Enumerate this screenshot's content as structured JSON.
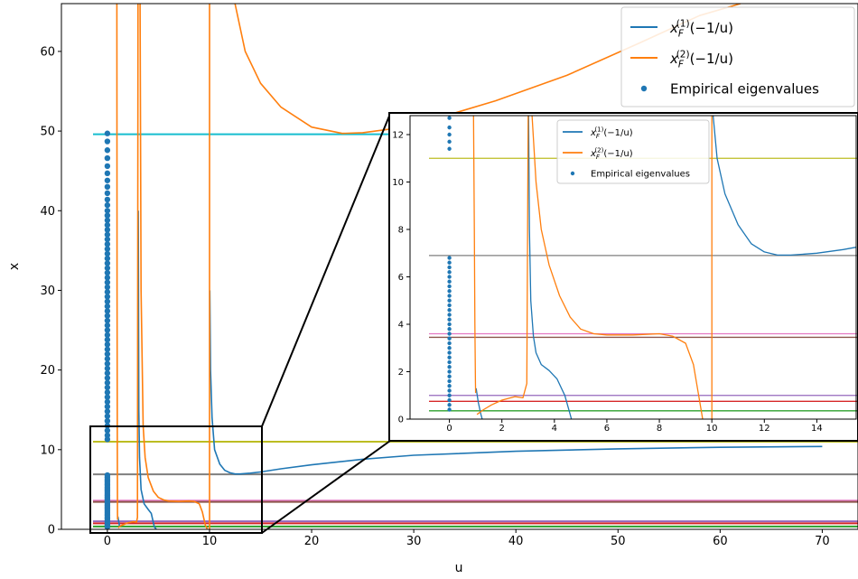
{
  "chart_data": [
    {
      "type": "line",
      "xlabel": "u",
      "ylabel": "x",
      "xlim": [
        -4.5,
        73.5
      ],
      "ylim": [
        0,
        66
      ],
      "xticks": [
        0,
        10,
        20,
        30,
        40,
        50,
        60,
        70
      ],
      "yticks": [
        0,
        10,
        20,
        30,
        40,
        50,
        60
      ],
      "legend": {
        "placement": "top-right",
        "entries": [
          {
            "label": "x",
            "sub": "F",
            "sup": "(1)",
            "arg": "(−1/u)",
            "color": "#1f77b4",
            "marker": "line"
          },
          {
            "label": "x",
            "sub": "F",
            "sup": "(2)",
            "arg": "(−1/u)",
            "color": "#ff7f0e",
            "marker": "line"
          },
          {
            "label": "Empirical eigenvalues",
            "color": "#1f77b4",
            "marker": "dot"
          }
        ]
      },
      "horizontal_lines": [
        {
          "y": 49.6,
          "color": "#17becf"
        },
        {
          "y": 11.0,
          "color": "#bcbd22"
        },
        {
          "y": 6.9,
          "color": "#7f7f7f"
        },
        {
          "y": 3.6,
          "color": "#e377c2"
        },
        {
          "y": 3.45,
          "color": "#8c564b"
        },
        {
          "y": 1.0,
          "color": "#9467bd"
        },
        {
          "y": 0.75,
          "color": "#d62728"
        },
        {
          "y": 0.35,
          "color": "#2ca02c"
        }
      ],
      "vertical_asymptotes": [
        1,
        3,
        10
      ],
      "series": [
        {
          "name": "x_F^(1)(-1/u)",
          "color": "#1f77b4",
          "segments": [
            [
              [
                1.03,
                1.6
              ],
              [
                1.2,
                0.3
              ]
            ],
            [
              [
                3.03,
                40
              ],
              [
                3.08,
                15
              ],
              [
                3.15,
                9
              ],
              [
                3.3,
                5
              ],
              [
                3.6,
                3.2
              ],
              [
                4,
                2.5
              ],
              [
                4.3,
                2.0
              ],
              [
                4.6,
                0.3
              ],
              [
                4.8,
                0
              ]
            ],
            [
              [
                10.03,
                30
              ],
              [
                10.1,
                20
              ],
              [
                10.25,
                14
              ],
              [
                10.5,
                10
              ],
              [
                11,
                8.2
              ],
              [
                11.5,
                7.4
              ],
              [
                12,
                7.1
              ],
              [
                12.5,
                6.95
              ],
              [
                13,
                6.95
              ],
              [
                14,
                7.05
              ],
              [
                15,
                7.2
              ],
              [
                17,
                7.6
              ],
              [
                20,
                8.1
              ],
              [
                25,
                8.8
              ],
              [
                30,
                9.3
              ],
              [
                40,
                9.8
              ],
              [
                50,
                10.1
              ],
              [
                60,
                10.3
              ],
              [
                70,
                10.4
              ]
            ]
          ]
        },
        {
          "name": "x_F^(2)(-1/u)",
          "color": "#ff7f0e",
          "segments": [
            [
              [
                0.93,
                66
              ],
              [
                0.95,
                30
              ],
              [
                0.97,
                10
              ],
              [
                0.99,
                2
              ],
              [
                1.0,
                1.2
              ]
            ],
            [
              [
                1.05,
                0.2
              ],
              [
                1.3,
                0.45
              ],
              [
                1.6,
                0.6
              ],
              [
                2,
                0.8
              ],
              [
                2.5,
                0.95
              ],
              [
                2.85,
                0.9
              ],
              [
                2.95,
                1.5
              ],
              [
                3.0,
                66
              ]
            ],
            [
              [
                3.2,
                66
              ],
              [
                3.3,
                30
              ],
              [
                3.5,
                13
              ],
              [
                3.7,
                9
              ],
              [
                4,
                6.5
              ],
              [
                4.5,
                4.8
              ],
              [
                5,
                4.0
              ],
              [
                5.5,
                3.7
              ],
              [
                6,
                3.55
              ],
              [
                7,
                3.5
              ],
              [
                8,
                3.55
              ],
              [
                8.5,
                3.5
              ],
              [
                9,
                3.2
              ],
              [
                9.3,
                2.2
              ],
              [
                9.6,
                0.5
              ],
              [
                9.8,
                0
              ]
            ],
            [
              [
                10,
                66
              ],
              [
                10,
                0
              ]
            ],
            [
              [
                12.5,
                66
              ],
              [
                13.5,
                60
              ],
              [
                15,
                56
              ],
              [
                17,
                53
              ],
              [
                20,
                50.5
              ],
              [
                23,
                49.7
              ],
              [
                25,
                49.8
              ],
              [
                28,
                50.3
              ],
              [
                32,
                51.5
              ],
              [
                38,
                53.8
              ],
              [
                45,
                57
              ],
              [
                52,
                61
              ],
              [
                58,
                64.5
              ],
              [
                62,
                66
              ]
            ]
          ]
        }
      ],
      "eigenvalues": {
        "u": 0,
        "y": [
          0.3,
          0.55,
          0.8,
          1.05,
          1.3,
          1.55,
          1.8,
          2.05,
          2.3,
          2.55,
          2.8,
          3.05,
          3.3,
          3.55,
          3.8,
          4.05,
          4.3,
          4.55,
          4.8,
          5.05,
          5.3,
          5.55,
          5.8,
          6.05,
          6.3,
          6.55,
          6.8,
          11.3,
          11.8,
          12.4,
          13.0,
          13.6,
          14.2,
          14.8,
          15.4,
          16.0,
          16.6,
          17.2,
          17.8,
          18.4,
          19.0,
          19.6,
          20.2,
          20.8,
          21.4,
          22.0,
          22.6,
          23.2,
          23.8,
          24.4,
          25.0,
          25.6,
          26.2,
          26.8,
          27.4,
          28.0,
          28.6,
          29.2,
          29.8,
          30.4,
          31.0,
          31.6,
          32.2,
          32.8,
          33.4,
          34.0,
          34.6,
          35.2,
          35.8,
          36.4,
          37.0,
          37.6,
          38.2,
          38.8,
          39.4,
          40.0,
          40.7,
          41.4,
          42.2,
          43.0,
          43.8,
          44.7,
          45.6,
          46.6,
          47.6,
          48.7,
          49.7
        ]
      }
    },
    {
      "type": "line",
      "inset": true,
      "xlim": [
        -1.5,
        15.5
      ],
      "ylim": [
        0,
        12.8
      ],
      "xticks": [
        0,
        2,
        4,
        6,
        8,
        10,
        12,
        14
      ],
      "yticks": [
        0,
        2,
        4,
        6,
        8,
        10,
        12
      ],
      "legend": {
        "placement": "top-center",
        "entries": [
          {
            "label": "x",
            "sub": "F",
            "sup": "(1)",
            "arg": "(−1/u)",
            "color": "#1f77b4",
            "marker": "line"
          },
          {
            "label": "x",
            "sub": "F",
            "sup": "(2)",
            "arg": "(−1/u)",
            "color": "#ff7f0e",
            "marker": "line"
          },
          {
            "label": "Empirical eigenvalues",
            "color": "#1f77b4",
            "marker": "dot"
          }
        ]
      },
      "horizontal_lines": [
        {
          "y": 11.0,
          "color": "#bcbd22"
        },
        {
          "y": 6.9,
          "color": "#7f7f7f"
        },
        {
          "y": 3.6,
          "color": "#e377c2"
        },
        {
          "y": 3.45,
          "color": "#8c564b"
        },
        {
          "y": 1.0,
          "color": "#9467bd"
        },
        {
          "y": 0.75,
          "color": "#d62728"
        },
        {
          "y": 0.35,
          "color": "#2ca02c"
        }
      ],
      "series": [
        {
          "name": "x_F^(1)(-1/u)",
          "color": "#1f77b4",
          "segments": [
            [
              [
                1.02,
                1.3
              ],
              [
                1.1,
                0.7
              ],
              [
                1.2,
                0.2
              ],
              [
                1.25,
                0
              ]
            ],
            [
              [
                3.02,
                12.8
              ],
              [
                3.05,
                8
              ],
              [
                3.1,
                5
              ],
              [
                3.2,
                3.5
              ],
              [
                3.3,
                2.8
              ],
              [
                3.5,
                2.3
              ],
              [
                3.8,
                2.05
              ],
              [
                4.1,
                1.7
              ],
              [
                4.4,
                1.0
              ],
              [
                4.6,
                0.2
              ],
              [
                4.65,
                0
              ]
            ],
            [
              [
                10.05,
                12.8
              ],
              [
                10.2,
                11
              ],
              [
                10.5,
                9.5
              ],
              [
                11,
                8.2
              ],
              [
                11.5,
                7.4
              ],
              [
                12,
                7.05
              ],
              [
                12.5,
                6.92
              ],
              [
                13,
                6.92
              ],
              [
                14,
                7.0
              ],
              [
                15,
                7.15
              ],
              [
                15.5,
                7.25
              ]
            ]
          ]
        },
        {
          "name": "x_F^(2)(-1/u)",
          "color": "#ff7f0e",
          "segments": [
            [
              [
                0.92,
                12.8
              ],
              [
                0.95,
                8
              ],
              [
                0.97,
                4
              ],
              [
                0.99,
                1.6
              ],
              [
                1.0,
                1.1
              ]
            ],
            [
              [
                1.05,
                0.2
              ],
              [
                1.3,
                0.4
              ],
              [
                1.6,
                0.6
              ],
              [
                2.0,
                0.8
              ],
              [
                2.5,
                0.95
              ],
              [
                2.8,
                0.9
              ],
              [
                2.95,
                1.5
              ],
              [
                3.0,
                12.8
              ]
            ],
            [
              [
                3.15,
                12.8
              ],
              [
                3.3,
                10
              ],
              [
                3.5,
                8
              ],
              [
                3.8,
                6.5
              ],
              [
                4.2,
                5.2
              ],
              [
                4.6,
                4.3
              ],
              [
                5,
                3.8
              ],
              [
                5.5,
                3.6
              ],
              [
                6,
                3.55
              ],
              [
                7,
                3.55
              ],
              [
                8,
                3.6
              ],
              [
                8.5,
                3.5
              ],
              [
                9,
                3.2
              ],
              [
                9.3,
                2.3
              ],
              [
                9.5,
                1.0
              ],
              [
                9.65,
                0
              ]
            ],
            [
              [
                10,
                12.8
              ],
              [
                10,
                0
              ]
            ]
          ]
        }
      ],
      "eigenvalues": {
        "u": 0,
        "y": [
          0.4,
          0.6,
          0.8,
          1.0,
          1.2,
          1.4,
          1.6,
          1.8,
          2.0,
          2.2,
          2.4,
          2.6,
          2.8,
          3.0,
          3.2,
          3.4,
          3.6,
          3.8,
          4.0,
          4.2,
          4.4,
          4.6,
          4.8,
          5.0,
          5.2,
          5.4,
          5.6,
          5.8,
          6.0,
          6.2,
          6.4,
          6.6,
          6.8,
          11.4,
          11.7,
          12.0,
          12.3,
          12.7
        ]
      }
    }
  ]
}
